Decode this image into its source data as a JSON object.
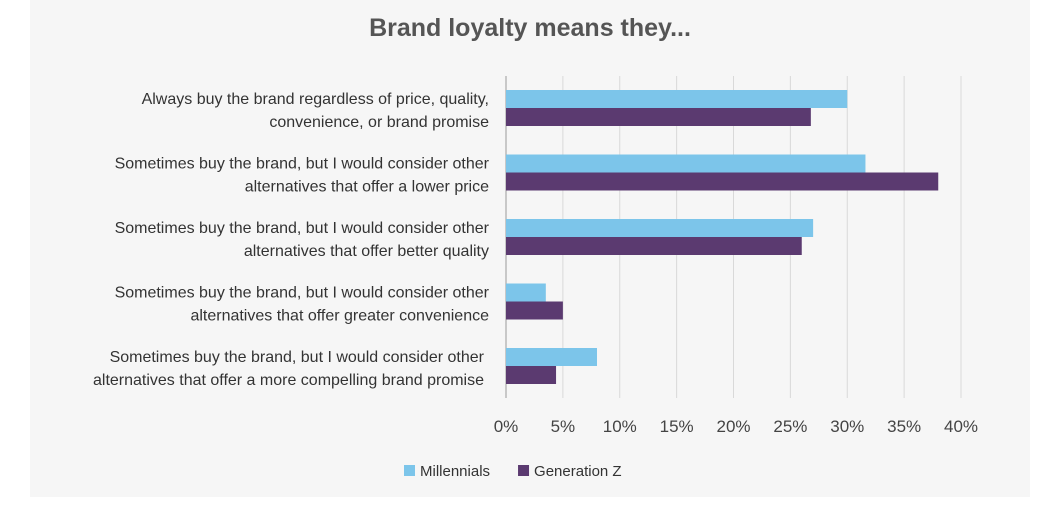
{
  "chart_data": {
    "type": "bar",
    "orientation": "horizontal",
    "title": "Brand loyalty means they...",
    "categories": [
      [
        "Always buy the brand regardless of price, quality,",
        "convenience, or brand promise"
      ],
      [
        "Sometimes buy the brand, but I would consider other",
        "alternatives that offer a lower price"
      ],
      [
        "Sometimes buy the brand, but I would consider other",
        "alternatives that offer better quality"
      ],
      [
        "Sometimes buy the brand, but I would consider other",
        "alternatives that offer greater convenience"
      ],
      [
        "Sometimes buy the brand, but I would consider other",
        "alternatives that offer a more compelling brand promise"
      ]
    ],
    "series": [
      {
        "name": "Millennials",
        "color": "#7cc5ea",
        "values": [
          30,
          31.6,
          27,
          3.5,
          8
        ]
      },
      {
        "name": "Generation Z",
        "color": "#5b3a70",
        "values": [
          26.8,
          38,
          26,
          5,
          4.4
        ]
      }
    ],
    "xlim": [
      0,
      40
    ],
    "xticks": [
      "0%",
      "5%",
      "10%",
      "15%",
      "20%",
      "25%",
      "30%",
      "35%",
      "40%"
    ],
    "grid": true,
    "legend": "bottom"
  }
}
